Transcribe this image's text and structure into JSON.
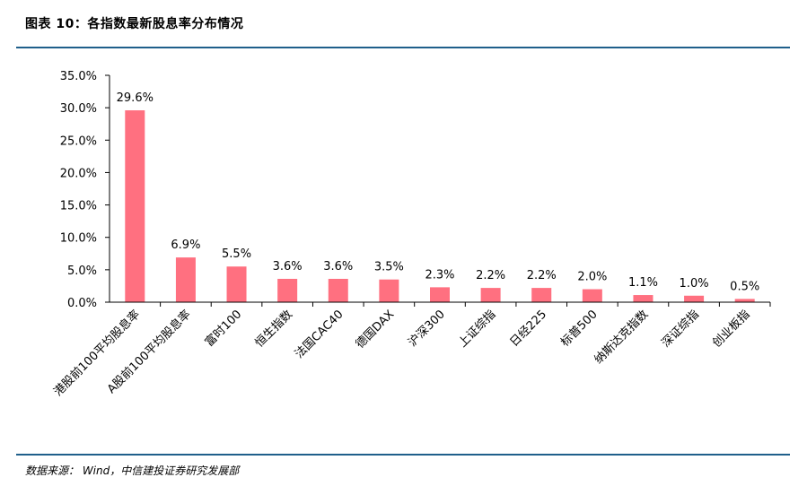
{
  "header": {
    "title": "图表 10：各指数最新股息率分布情况"
  },
  "footer": {
    "source": "数据来源： Wind，中信建投证券研究发展部"
  },
  "colors": {
    "bar": "#ff7080",
    "rule": "#1f5f8b",
    "axis": "#000000"
  },
  "chart_data": {
    "type": "bar",
    "title": "",
    "xlabel": "",
    "ylabel": "",
    "categories": [
      "港股前100平均股息率",
      "A股前100平均股息率",
      "富时100",
      "恒生指数",
      "法国CAC40",
      "德国DAX",
      "沪深300",
      "上证综指",
      "日经225",
      "标普500",
      "纳斯达克指数",
      "深证综指",
      "创业板指"
    ],
    "values": [
      29.6,
      6.9,
      5.5,
      3.6,
      3.6,
      3.5,
      2.3,
      2.2,
      2.2,
      2.0,
      1.1,
      1.0,
      0.5
    ],
    "data_labels": [
      "29.6%",
      "6.9%",
      "5.5%",
      "3.6%",
      "3.6%",
      "3.5%",
      "2.3%",
      "2.2%",
      "2.2%",
      "2.0%",
      "1.1%",
      "1.0%",
      "0.5%"
    ],
    "ylim": [
      0,
      35
    ],
    "yticks": [
      0,
      5,
      10,
      15,
      20,
      25,
      30,
      35
    ],
    "ytick_labels": [
      "0.0%",
      "5.0%",
      "10.0%",
      "15.0%",
      "20.0%",
      "25.0%",
      "30.0%",
      "35.0%"
    ],
    "grid": false,
    "legend": "none"
  }
}
